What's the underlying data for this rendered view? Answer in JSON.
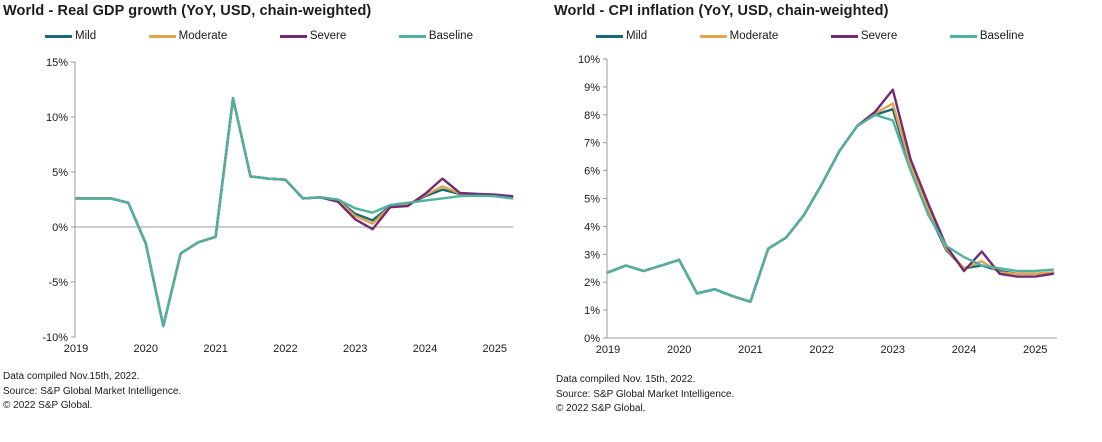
{
  "page": {
    "background_color": "#ffffff",
    "text_color": "#1a1a1a",
    "axis_line_color": "#9b9b9b"
  },
  "chart_data": [
    {
      "type": "line",
      "title": "World - Real GDP growth (YoY, USD, chain-weighted)",
      "xlabel": "",
      "ylabel": "",
      "ylim": [
        -10,
        15
      ],
      "y_ticks": [
        15,
        10,
        5,
        0,
        -5,
        -10
      ],
      "y_tick_suffix": "%",
      "grid": "horizontal zero line only",
      "legend_position": "top",
      "x_tick_labels": [
        "2019",
        "2020",
        "2021",
        "2022",
        "2023",
        "2024",
        "2025"
      ],
      "x_frequency": "quarterly",
      "x": [
        "2019Q1",
        "2019Q2",
        "2019Q3",
        "2019Q4",
        "2020Q1",
        "2020Q2",
        "2020Q3",
        "2020Q4",
        "2021Q1",
        "2021Q2",
        "2021Q3",
        "2021Q4",
        "2022Q1",
        "2022Q2",
        "2022Q3",
        "2022Q4",
        "2023Q1",
        "2023Q2",
        "2023Q3",
        "2023Q4",
        "2024Q1",
        "2024Q2",
        "2024Q3",
        "2024Q4",
        "2025Q1",
        "2025Q2"
      ],
      "series": [
        {
          "name": "Mild",
          "color": "#17697A",
          "values": [
            2.6,
            2.6,
            2.6,
            2.2,
            -1.5,
            -9.0,
            -2.4,
            -1.4,
            -0.9,
            11.7,
            4.6,
            4.4,
            4.3,
            2.6,
            2.7,
            2.45,
            1.2,
            0.6,
            1.9,
            2.0,
            2.8,
            3.4,
            3.0,
            2.95,
            2.9,
            2.75
          ]
        },
        {
          "name": "Moderate",
          "color": "#E3A44C",
          "values": [
            2.6,
            2.6,
            2.6,
            2.2,
            -1.5,
            -9.0,
            -2.4,
            -1.4,
            -0.9,
            11.7,
            4.6,
            4.4,
            4.3,
            2.6,
            2.7,
            2.4,
            1.0,
            0.3,
            1.85,
            2.0,
            2.9,
            3.7,
            3.05,
            3.0,
            2.9,
            2.8
          ]
        },
        {
          "name": "Severe",
          "color": "#722B72",
          "values": [
            2.6,
            2.6,
            2.6,
            2.2,
            -1.5,
            -9.0,
            -2.4,
            -1.4,
            -0.9,
            11.7,
            4.6,
            4.4,
            4.3,
            2.6,
            2.7,
            2.3,
            0.7,
            -0.2,
            1.8,
            1.9,
            3.0,
            4.4,
            3.1,
            3.0,
            2.95,
            2.8
          ]
        },
        {
          "name": "Baseline",
          "color": "#4FB2A1",
          "values": [
            2.6,
            2.6,
            2.6,
            2.2,
            -1.5,
            -9.0,
            -2.4,
            -1.4,
            -0.9,
            11.7,
            4.6,
            4.4,
            4.3,
            2.6,
            2.7,
            2.5,
            1.7,
            1.3,
            2.0,
            2.2,
            2.4,
            2.6,
            2.8,
            2.85,
            2.8,
            2.6
          ]
        }
      ],
      "footnotes": [
        "Data compiled Nov.15th, 2022.",
        "Source: S&P Global Market Intelligence.",
        "© 2022 S&P Global."
      ]
    },
    {
      "type": "line",
      "title": "World - CPI inflation (YoY, USD, chain-weighted)",
      "xlabel": "",
      "ylabel": "",
      "ylim": [
        0,
        10
      ],
      "y_ticks": [
        10,
        9,
        8,
        7,
        6,
        5,
        4,
        3,
        2,
        1,
        0
      ],
      "y_tick_suffix": "%",
      "grid": "none (bottom axis line only)",
      "legend_position": "top",
      "x_tick_labels": [
        "2019",
        "2020",
        "2021",
        "2022",
        "2023",
        "2024",
        "2025"
      ],
      "x_frequency": "quarterly",
      "x": [
        "2019Q1",
        "2019Q2",
        "2019Q3",
        "2019Q4",
        "2020Q1",
        "2020Q2",
        "2020Q3",
        "2020Q4",
        "2021Q1",
        "2021Q2",
        "2021Q3",
        "2021Q4",
        "2022Q1",
        "2022Q2",
        "2022Q3",
        "2022Q4",
        "2023Q1",
        "2023Q2",
        "2023Q3",
        "2023Q4",
        "2024Q1",
        "2024Q2",
        "2024Q3",
        "2024Q4",
        "2025Q1",
        "2025Q2"
      ],
      "series": [
        {
          "name": "Mild",
          "color": "#17697A",
          "values": [
            2.35,
            2.6,
            2.4,
            2.6,
            2.8,
            1.6,
            1.75,
            1.5,
            1.3,
            3.2,
            3.6,
            4.4,
            5.5,
            6.7,
            7.6,
            8.0,
            8.2,
            6.1,
            4.5,
            3.15,
            2.5,
            2.6,
            2.4,
            2.3,
            2.3,
            2.35
          ]
        },
        {
          "name": "Moderate",
          "color": "#E3A44C",
          "values": [
            2.35,
            2.6,
            2.4,
            2.6,
            2.8,
            1.6,
            1.75,
            1.5,
            1.3,
            3.2,
            3.6,
            4.4,
            5.5,
            6.7,
            7.6,
            8.05,
            8.4,
            6.2,
            4.6,
            3.2,
            2.5,
            2.75,
            2.35,
            2.3,
            2.3,
            2.35
          ]
        },
        {
          "name": "Severe",
          "color": "#722B72",
          "values": [
            2.35,
            2.6,
            2.4,
            2.6,
            2.8,
            1.6,
            1.75,
            1.5,
            1.3,
            3.2,
            3.6,
            4.4,
            5.5,
            6.7,
            7.6,
            8.1,
            8.9,
            6.4,
            4.8,
            3.3,
            2.4,
            3.1,
            2.3,
            2.2,
            2.2,
            2.3
          ]
        },
        {
          "name": "Baseline",
          "color": "#4FB2A1",
          "values": [
            2.35,
            2.6,
            2.4,
            2.6,
            2.8,
            1.6,
            1.75,
            1.5,
            1.3,
            3.2,
            3.6,
            4.4,
            5.5,
            6.7,
            7.6,
            8.0,
            7.8,
            6.0,
            4.4,
            3.3,
            2.9,
            2.6,
            2.5,
            2.4,
            2.4,
            2.45
          ]
        }
      ],
      "footnotes": [
        "Data compiled Nov. 15th, 2022.",
        "Source: S&P Global Market Intelligence.",
        "© 2022 S&P Global."
      ]
    }
  ]
}
